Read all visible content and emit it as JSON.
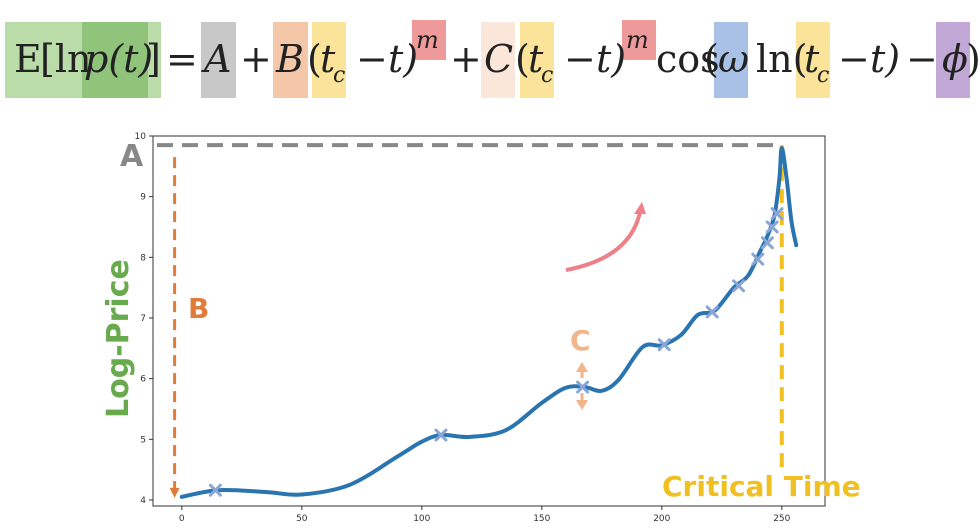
{
  "formula": {
    "lhs": "E[ln p(t)]",
    "rhs": "= A + B(t_c − t)^m + C(t_c − t)^m cos(ω ln(t_c − t) − φ)",
    "parts": {
      "E": "E",
      "lb": "[ln",
      "p": "p(t)",
      "rb": "]",
      "eq": "=",
      "A": "A",
      "plus1": "+",
      "B": "B",
      "lp1": "(",
      "tc1": "t",
      "tc1sub": "c",
      "minus1": "−",
      "t1": "t)",
      "m1": "m",
      "plus2": "+",
      "C": "C",
      "lp2": "(",
      "tc2": "t",
      "tc2sub": "c",
      "minus2": "−",
      "t2": "t)",
      "m2": "m",
      "cos": "cos",
      "lp3": "(",
      "omega": "ω",
      "ln": "ln(",
      "tc3": "t",
      "tc3sub": "c",
      "minus3": "−",
      "t3": "t)",
      "minus4": "−",
      "phi": "ϕ",
      "rp3": ")"
    },
    "colors": {
      "lhs_light": "#b9dca8",
      "lhs_dark": "#8fc47a",
      "A": "#c8c8c8",
      "B": "#f3c7a8",
      "tc": "#fbe49a",
      "m": "#ee9a9a",
      "C": "#fbe7da",
      "omega": "#a9c1e6",
      "phi": "#c2a8d6"
    }
  },
  "annotations": {
    "A": "A",
    "B": "B",
    "C": "C",
    "critical_time": "Critical Time",
    "y_title": "Log-Price",
    "colors": {
      "A": "#888888",
      "B": "#e07b39",
      "C": "#f2b48a",
      "critical": "#f0c020",
      "y_title": "#6aaa4e",
      "arrow": "#ee7f87"
    }
  },
  "chart_data": {
    "type": "line",
    "xlim": [
      -12,
      268
    ],
    "ylim": [
      3.9,
      10.0
    ],
    "xticks": [
      0,
      50,
      100,
      150,
      200,
      250
    ],
    "yticks": [
      4,
      5,
      6,
      7,
      8,
      9,
      10
    ],
    "x": [
      0,
      15,
      35,
      50,
      70,
      90,
      100,
      108,
      120,
      135,
      150,
      160,
      168,
      175,
      182,
      192,
      200,
      208,
      215,
      222,
      230,
      236,
      241,
      244,
      247,
      249,
      250,
      252,
      254,
      256
    ],
    "y": [
      4.05,
      4.16,
      4.13,
      4.09,
      4.25,
      4.72,
      4.96,
      5.07,
      5.04,
      5.15,
      5.6,
      5.85,
      5.86,
      5.8,
      5.98,
      6.52,
      6.55,
      6.72,
      7.05,
      7.12,
      7.5,
      7.7,
      8.1,
      8.35,
      8.7,
      9.3,
      9.8,
      9.3,
      8.6,
      8.2
    ],
    "markers": [
      {
        "x": 14,
        "y": 4.16
      },
      {
        "x": 108,
        "y": 5.07
      },
      {
        "x": 167,
        "y": 5.86
      },
      {
        "x": 201,
        "y": 6.56
      },
      {
        "x": 221,
        "y": 7.1
      },
      {
        "x": 232,
        "y": 7.53
      },
      {
        "x": 240,
        "y": 7.97
      },
      {
        "x": 244,
        "y": 8.24
      },
      {
        "x": 246,
        "y": 8.5
      },
      {
        "x": 248,
        "y": 8.72
      }
    ],
    "critical_time_x": 250,
    "A_level": 9.85,
    "series_color": "#2a74b0",
    "marker_color": "#8aa6d6"
  }
}
